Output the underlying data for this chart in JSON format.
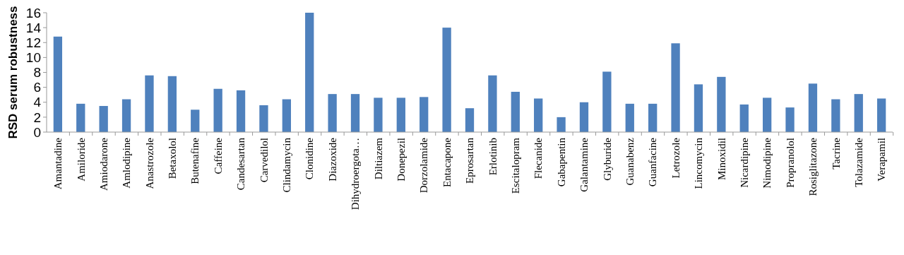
{
  "chart_data": {
    "type": "bar",
    "ylabel": "RSD serum robustness",
    "categories": [
      "Amantadine",
      "Amiloride",
      "Amiodarone",
      "Amlodipine",
      "Anastrozole",
      "Betaxolol",
      "Butenafine",
      "Caffeine",
      "Candesartan",
      "Carvedilol",
      "Clindamycin",
      "Clonidine",
      "Diazoxide",
      "Dihydroergota…",
      "Diltiazem",
      "Donepezil",
      "Dorzolamide",
      "Entacapone",
      "Eprosartan",
      "Erlotinib",
      "Escitalopram",
      "Flecanide",
      "Gabapentin",
      "Galantamine",
      "Glyburide",
      "Guanabenz",
      "Guanfacine",
      "Letrozole",
      "Lincomycin",
      "Minoxidil",
      "Nicardipine",
      "Nimodipine",
      "Propranolol",
      "Rosiglitazone",
      "Tacrine",
      "Tolazamide",
      "Verapamil"
    ],
    "values": [
      12.8,
      3.8,
      3.5,
      4.4,
      7.6,
      7.5,
      3.0,
      5.8,
      5.6,
      3.6,
      4.4,
      16.0,
      5.1,
      5.1,
      4.6,
      4.6,
      4.7,
      14.0,
      3.2,
      7.6,
      5.4,
      4.5,
      2.0,
      4.0,
      8.1,
      3.8,
      3.8,
      11.9,
      6.4,
      7.4,
      3.7,
      4.6,
      3.3,
      6.5,
      4.4,
      5.1,
      4.5
    ],
    "color": "#4f81bd",
    "ylim": [
      0,
      16
    ],
    "yticks": [
      0,
      2,
      4,
      6,
      8,
      10,
      12,
      14,
      16
    ],
    "grid": false
  }
}
